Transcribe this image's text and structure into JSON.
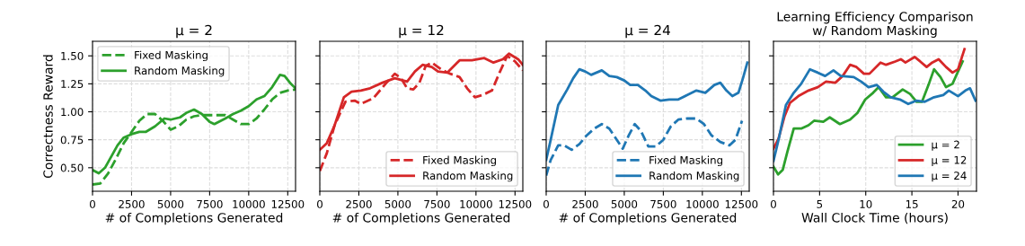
{
  "chart_data": [
    {
      "type": "line",
      "title": "μ = 2",
      "xlabel": "# of Completions Generated",
      "ylabel": "Correctness Reward",
      "xlim": [
        0,
        13000
      ],
      "xticks": [
        0,
        2500,
        5000,
        7500,
        10000,
        12500
      ],
      "ylim": [
        0.29,
        1.63
      ],
      "yticks": [
        {
          "value": 0.5,
          "label": "0.50"
        },
        {
          "value": 0.75,
          "label": "0.75"
        },
        {
          "value": 1.0,
          "label": "1.00"
        },
        {
          "value": 1.25,
          "label": "1.25"
        },
        {
          "value": 1.5,
          "label": "1.50"
        }
      ],
      "grid": true,
      "legend": "top left",
      "series": [
        {
          "name": "Fixed Masking",
          "color": "#2ca02c",
          "line_style": "dashed",
          "x": [
            0,
            500,
            1000,
            1500,
            2000,
            2500,
            3000,
            3500,
            4000,
            4500,
            5000,
            5500,
            6000,
            6500,
            7000,
            8000,
            8500,
            9000,
            9500,
            10000,
            10500,
            11000,
            11500,
            12000,
            12500,
            13000
          ],
          "values": [
            0.35,
            0.36,
            0.45,
            0.58,
            0.72,
            0.82,
            0.92,
            0.98,
            0.98,
            0.92,
            0.84,
            0.87,
            0.93,
            0.96,
            0.97,
            0.97,
            0.97,
            0.93,
            0.89,
            0.89,
            0.94,
            1.02,
            1.11,
            1.17,
            1.19,
            1.2
          ]
        },
        {
          "name": "Random Masking",
          "color": "#2ca02c",
          "line_style": "solid",
          "x": [
            0,
            400,
            800,
            1200,
            1600,
            2000,
            2500,
            3000,
            3400,
            4000,
            4600,
            5000,
            5600,
            6000,
            6500,
            7000,
            7500,
            7800,
            8500,
            9000,
            9500,
            10000,
            10500,
            11000,
            11500,
            12000,
            12300,
            12700,
            13000
          ],
          "values": [
            0.48,
            0.45,
            0.5,
            0.6,
            0.7,
            0.77,
            0.8,
            0.82,
            0.82,
            0.87,
            0.94,
            0.93,
            0.95,
            0.99,
            1.02,
            0.98,
            0.91,
            0.89,
            0.94,
            0.98,
            1.01,
            1.05,
            1.11,
            1.14,
            1.22,
            1.33,
            1.32,
            1.25,
            1.21
          ]
        }
      ]
    },
    {
      "type": "line",
      "title": "μ = 12",
      "xlabel": "# of Completions Generated",
      "xlim": [
        0,
        13000
      ],
      "xticks": [
        0,
        2500,
        5000,
        7500,
        10000,
        12500
      ],
      "ylim": [
        0.29,
        1.63
      ],
      "yticks": [
        0.5,
        0.75,
        1.0,
        1.25,
        1.5
      ],
      "tick_labels": "x",
      "grid": true,
      "legend": "bottom right",
      "series": [
        {
          "name": "Fixed Masking",
          "color": "#d62728",
          "line_style": "dashed",
          "x": [
            0,
            450,
            950,
            1640,
            2230,
            2630,
            3420,
            4210,
            4800,
            5200,
            5590,
            5990,
            6380,
            6780,
            7170,
            7760,
            8350,
            8950,
            9430,
            9930,
            10420,
            11020,
            11510,
            12000,
            12500,
            13000
          ],
          "values": [
            0.47,
            0.63,
            0.88,
            1.09,
            1.1,
            1.07,
            1.12,
            1.25,
            1.34,
            1.3,
            1.21,
            1.2,
            1.26,
            1.41,
            1.44,
            1.38,
            1.34,
            1.31,
            1.21,
            1.13,
            1.15,
            1.19,
            1.35,
            1.5,
            1.45,
            1.37
          ]
        },
        {
          "name": "Random Masking",
          "color": "#d62728",
          "line_style": "solid",
          "x": [
            0,
            450,
            950,
            1540,
            2030,
            2630,
            3220,
            4010,
            4800,
            5590,
            6090,
            6580,
            7170,
            7570,
            8160,
            8950,
            9740,
            10530,
            11120,
            11720,
            12110,
            12700,
            13000
          ],
          "values": [
            0.66,
            0.72,
            0.88,
            1.13,
            1.18,
            1.19,
            1.21,
            1.26,
            1.3,
            1.27,
            1.36,
            1.42,
            1.4,
            1.36,
            1.35,
            1.46,
            1.46,
            1.48,
            1.44,
            1.47,
            1.52,
            1.47,
            1.42
          ]
        }
      ]
    },
    {
      "type": "line",
      "title": "μ = 24",
      "xlabel": "# of Completions Generated",
      "xlim": [
        0,
        13000
      ],
      "xticks": [
        0,
        2500,
        5000,
        7500,
        10000,
        12500
      ],
      "ylim": [
        0.29,
        1.63
      ],
      "yticks": [
        0.5,
        0.75,
        1.0,
        1.25,
        1.5
      ],
      "tick_labels": "x",
      "grid": true,
      "legend": "bottom right",
      "series": [
        {
          "name": "Fixed Masking",
          "color": "#1f77b4",
          "line_style": "dashed",
          "x": [
            0,
            290,
            770,
            1150,
            1630,
            2120,
            2600,
            3080,
            3560,
            4040,
            4520,
            4900,
            5290,
            5670,
            6060,
            6540,
            7020,
            7500,
            7980,
            8460,
            9040,
            9620,
            10100,
            10580,
            11150,
            11730,
            12120,
            12540
          ],
          "values": [
            0.43,
            0.57,
            0.7,
            0.7,
            0.66,
            0.71,
            0.79,
            0.85,
            0.89,
            0.85,
            0.75,
            0.67,
            0.79,
            0.89,
            0.83,
            0.69,
            0.69,
            0.75,
            0.87,
            0.93,
            0.94,
            0.94,
            0.89,
            0.79,
            0.73,
            0.7,
            0.75,
            0.92
          ]
        },
        {
          "name": "Random Masking",
          "color": "#1f77b4",
          "line_style": "solid",
          "x": [
            0,
            290,
            770,
            1350,
            1730,
            2120,
            2500,
            2880,
            3560,
            4040,
            4520,
            5000,
            5380,
            5870,
            6350,
            6730,
            7310,
            7880,
            8460,
            9040,
            9620,
            10190,
            10770,
            11150,
            11540,
            11920,
            12310,
            12600,
            12880
          ],
          "values": [
            0.57,
            0.75,
            1.06,
            1.2,
            1.3,
            1.38,
            1.36,
            1.33,
            1.37,
            1.32,
            1.31,
            1.28,
            1.24,
            1.24,
            1.19,
            1.14,
            1.1,
            1.11,
            1.11,
            1.15,
            1.19,
            1.17,
            1.24,
            1.26,
            1.19,
            1.14,
            1.17,
            1.3,
            1.44
          ]
        }
      ]
    },
    {
      "type": "line",
      "title": "Learning Efficiency Comparison\nw/ Random Masking",
      "xlabel": "Wall Clock Time (hours)",
      "xlim": [
        0,
        22
      ],
      "xticks": [
        0,
        5,
        10,
        15,
        20
      ],
      "ylim": [
        0.29,
        1.63
      ],
      "yticks": [
        0.5,
        0.75,
        1.0,
        1.25,
        1.5
      ],
      "tick_labels": "x",
      "grid": true,
      "legend": "bottom right",
      "series": [
        {
          "name": "μ = 2",
          "color": "#2ca02c",
          "line_style": "solid",
          "x": [
            0,
            0.5,
            1.0,
            1.5,
            2.2,
            3.0,
            3.8,
            4.4,
            5.4,
            6.1,
            7.2,
            8.3,
            9.1,
            9.95,
            10.8,
            11.4,
            12.2,
            12.9,
            14.0,
            14.8,
            15.5,
            16.1,
            16.8,
            17.4,
            18.1,
            18.7,
            19.4,
            20.0,
            20.5
          ],
          "values": [
            0.51,
            0.44,
            0.48,
            0.64,
            0.85,
            0.85,
            0.88,
            0.92,
            0.91,
            0.95,
            0.89,
            0.93,
            0.99,
            1.11,
            1.17,
            1.22,
            1.13,
            1.13,
            1.2,
            1.16,
            1.09,
            1.09,
            1.24,
            1.38,
            1.31,
            1.22,
            1.25,
            1.36,
            1.45
          ]
        },
        {
          "name": "μ = 12",
          "color": "#d62728",
          "line_style": "solid",
          "x": [
            0,
            0.55,
            1.2,
            1.8,
            2.7,
            3.8,
            4.8,
            5.7,
            6.7,
            7.5,
            8.3,
            9.0,
            9.8,
            10.4,
            11.6,
            12.2,
            13.2,
            13.8,
            14.3,
            15.3,
            15.9,
            16.6,
            17.2,
            17.9,
            18.7,
            19.4,
            20.0,
            20.7
          ],
          "values": [
            0.67,
            0.76,
            0.96,
            1.08,
            1.14,
            1.19,
            1.22,
            1.27,
            1.26,
            1.32,
            1.42,
            1.4,
            1.34,
            1.34,
            1.44,
            1.42,
            1.45,
            1.47,
            1.44,
            1.49,
            1.45,
            1.4,
            1.44,
            1.47,
            1.4,
            1.35,
            1.38,
            1.56
          ]
        },
        {
          "name": "μ = 24",
          "color": "#1f77b4",
          "line_style": "solid",
          "x": [
            0,
            0.55,
            1.35,
            2.2,
            3.0,
            3.95,
            4.8,
            5.6,
            6.5,
            7.3,
            8.7,
            9.5,
            10.3,
            11.2,
            11.9,
            12.7,
            13.7,
            14.6,
            15.5,
            16.4,
            17.4,
            18.4,
            19.0,
            20.0,
            20.8,
            21.3,
            21.9
          ],
          "values": [
            0.56,
            0.75,
            1.06,
            1.17,
            1.25,
            1.38,
            1.35,
            1.32,
            1.37,
            1.32,
            1.31,
            1.27,
            1.22,
            1.24,
            1.18,
            1.13,
            1.11,
            1.07,
            1.1,
            1.09,
            1.13,
            1.15,
            1.19,
            1.14,
            1.19,
            1.21,
            1.1
          ]
        }
      ]
    }
  ]
}
